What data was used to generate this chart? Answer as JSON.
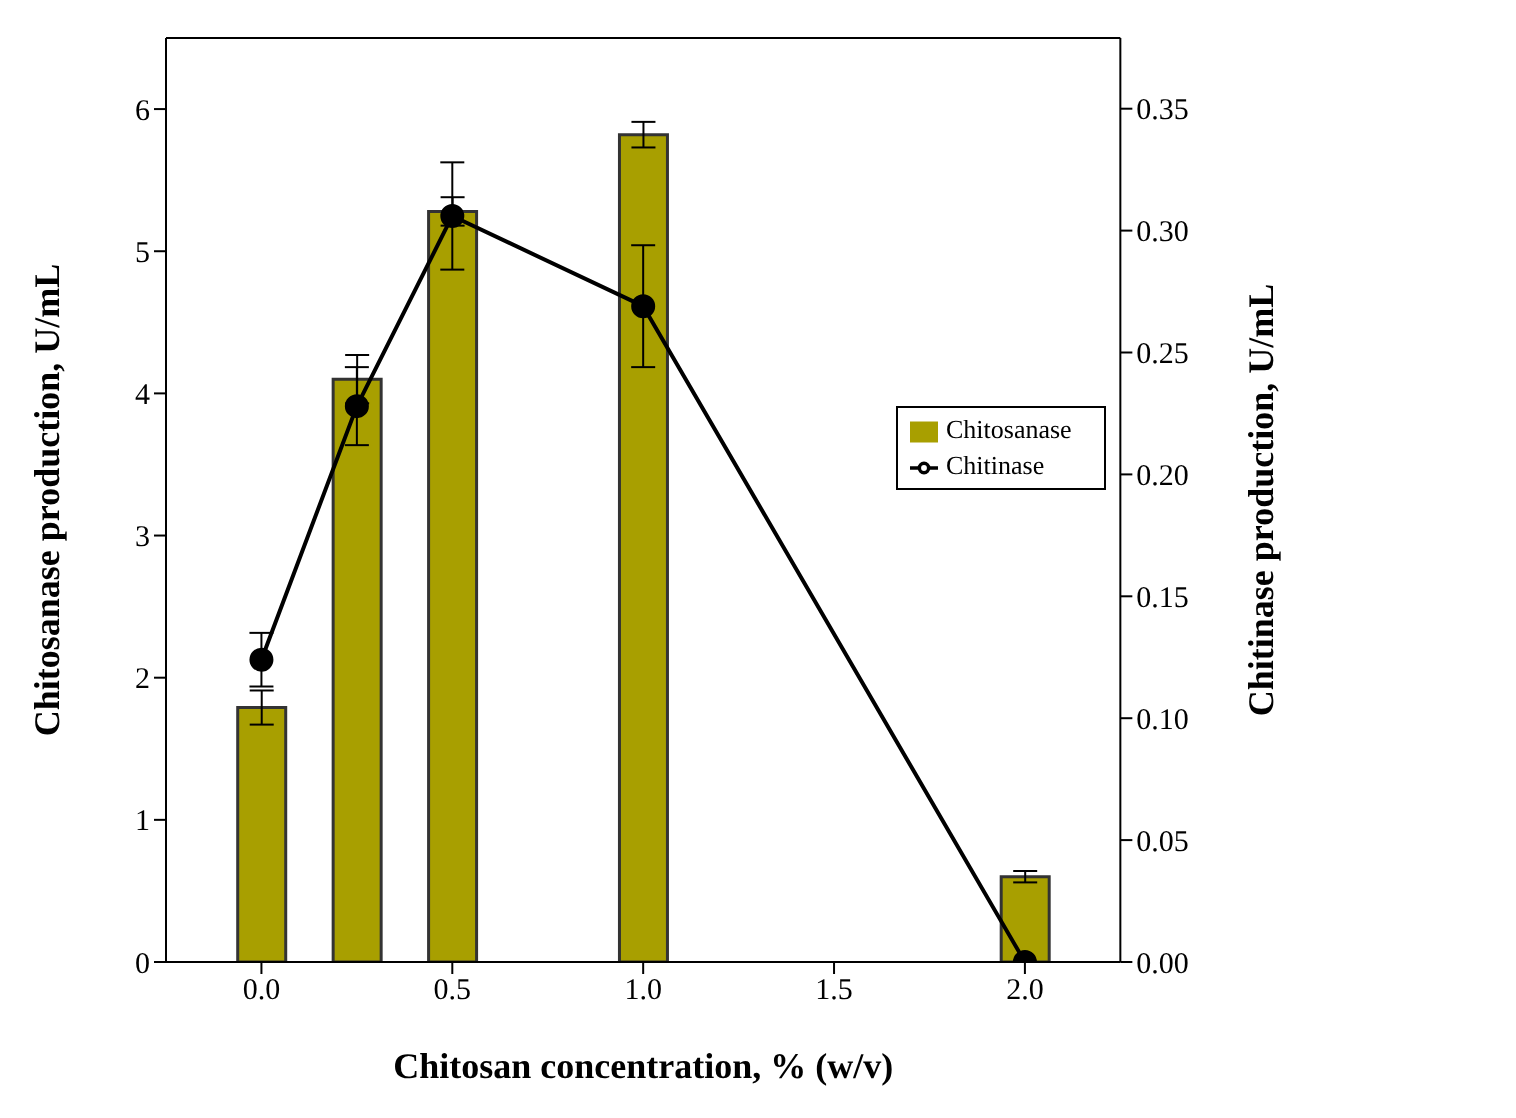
{
  "chart_data": {
    "type": "bar",
    "xlabel": "Chitosan concentration, % (w/v)",
    "ylabel": "Chitosanase production, U/mL",
    "y2label": "Chitinase production, U/mL",
    "x": [
      0,
      0.25,
      0.5,
      1,
      2
    ],
    "series": [
      {
        "name": "Chitosanase",
        "color": "#a89f00",
        "values": [
          1.79,
          4.1,
          5.28,
          5.82,
          0.6
        ],
        "errors": [
          0.12,
          0.17,
          0.1,
          0.09,
          0.04
        ]
      },
      {
        "name": "Chitinase",
        "type": "line",
        "axis": "y2",
        "color": "#000000",
        "marker": "circle",
        "values": [
          0.124,
          0.228,
          0.306,
          0.269,
          0.0
        ],
        "errors": [
          0.011,
          0.016,
          0.022,
          0.025,
          null
        ]
      }
    ],
    "xlim": [
      -0.25,
      2.25
    ],
    "xticks": [
      {
        "value": 0,
        "label": "0.0"
      },
      0.5,
      {
        "value": 1,
        "label": "1.0"
      },
      1.5,
      {
        "value": 2,
        "label": "2.0"
      }
    ],
    "ylim": [
      0,
      6.5
    ],
    "yticks": [
      0,
      1,
      2,
      3,
      4,
      5,
      6
    ],
    "y2lim": [
      0,
      0.379
    ],
    "y2ticks": [
      {
        "value": 0,
        "label": "0.00"
      },
      0.05,
      {
        "value": 0.1,
        "label": "0.10"
      },
      0.15,
      {
        "value": 0.2,
        "label": "0.20"
      },
      0.25,
      {
        "value": 0.3,
        "label": "0.30"
      },
      0.35
    ],
    "legend": "right",
    "grid": false
  }
}
